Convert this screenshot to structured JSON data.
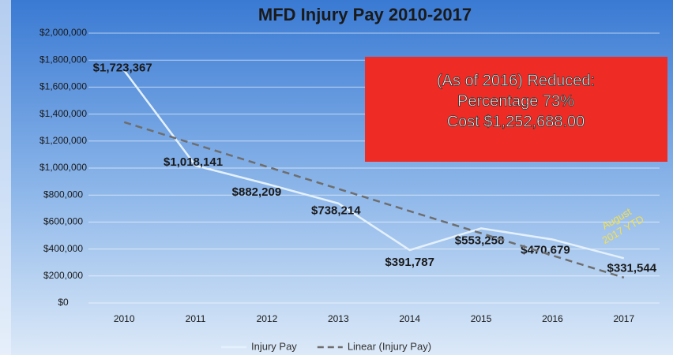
{
  "chart_data": {
    "type": "line",
    "title": "MFD Injury Pay 2010-2017",
    "categories": [
      "2010",
      "2011",
      "2012",
      "2013",
      "2014",
      "2015",
      "2016",
      "2017"
    ],
    "series": [
      {
        "name": "Injury Pay",
        "color": "#e4f1fc",
        "values": [
          1723367,
          1018141,
          882209,
          738214,
          391787,
          553258,
          470679,
          331544
        ],
        "value_labels": [
          "$1,723,367",
          "$1,018,141",
          "$882,209",
          "$738,214",
          "$391,787",
          "$553,258",
          "$470,679",
          "$331,544"
        ]
      },
      {
        "name": "Linear (Injury Pay)",
        "color": "#6e6e6e",
        "dashed": true,
        "values": [
          1340000,
          1175000,
          1010000,
          846000,
          681000,
          517000,
          352000,
          188000
        ]
      }
    ],
    "ylim": [
      0,
      2000000
    ],
    "yticks": [
      {
        "value": 0,
        "label": "$0"
      },
      {
        "value": 200000,
        "label": "$200,000"
      },
      {
        "value": 400000,
        "label": "$400,000"
      },
      {
        "value": 600000,
        "label": "$600,000"
      },
      {
        "value": 800000,
        "label": "$800,000"
      },
      {
        "value": 1000000,
        "label": "$1,000,000"
      },
      {
        "value": 1200000,
        "label": "$1,200,000"
      },
      {
        "value": 1400000,
        "label": "$1,400,000"
      },
      {
        "value": 1600000,
        "label": "$1,600,000"
      },
      {
        "value": 1800000,
        "label": "$1,800,000"
      },
      {
        "value": 2000000,
        "label": "$2,000,000"
      }
    ],
    "grid": true,
    "legend": "bottom",
    "annotations": {
      "box": [
        "(As of 2016) Reduced:",
        "Percentage 73%",
        "Cost $1,252,688.00"
      ],
      "note": [
        "August",
        "2017 YTD"
      ]
    }
  }
}
